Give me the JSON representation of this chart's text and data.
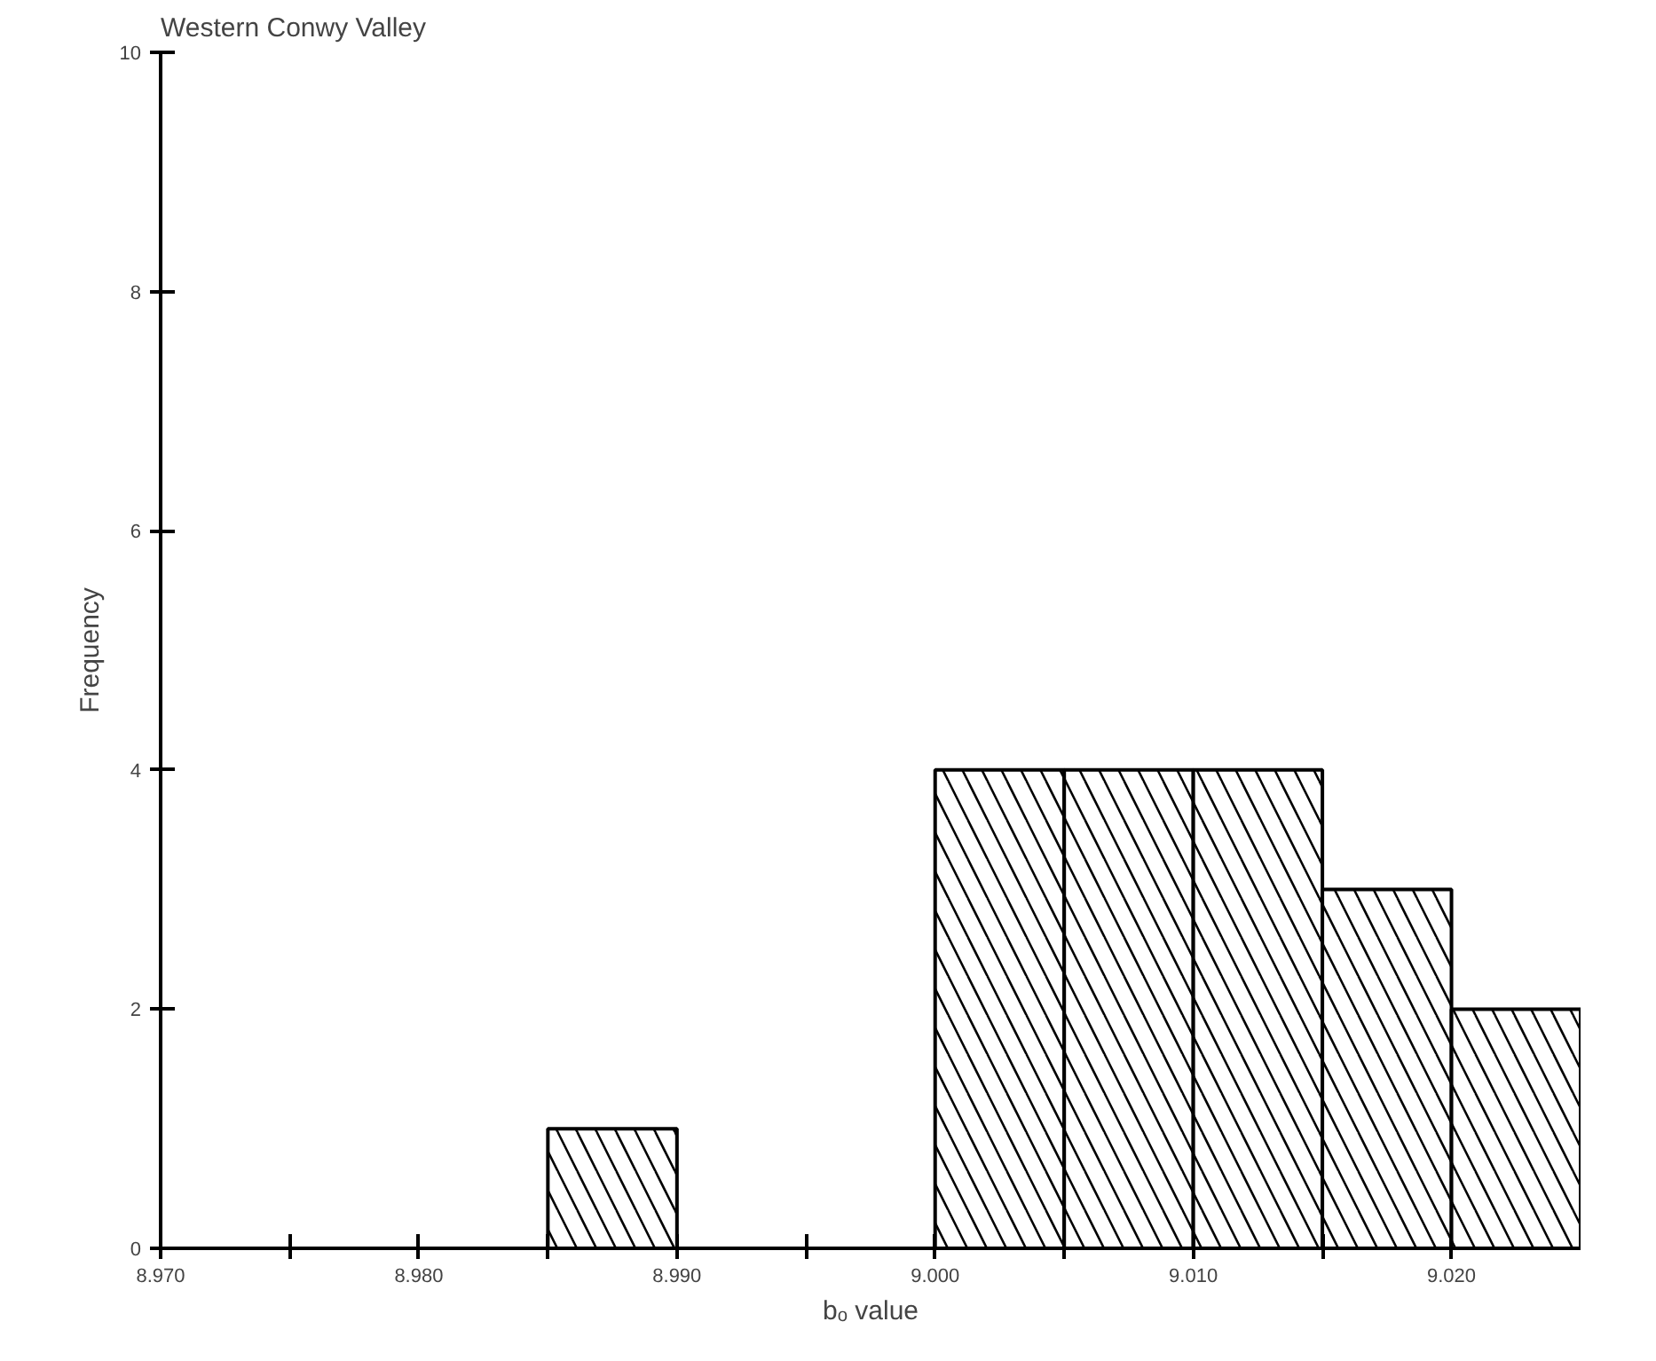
{
  "chart_data": {
    "type": "histogram",
    "title": "Western Conwy Valley",
    "xlabel": "bₒ value",
    "ylabel": "Frequency",
    "bins": [
      8.985,
      8.99,
      8.995,
      9.0,
      9.005,
      9.01,
      9.015,
      9.02,
      9.025
    ],
    "values": [
      1,
      0,
      0,
      4,
      4,
      4,
      3,
      2
    ],
    "color": "#000000",
    "xlim": [
      8.97,
      9.025
    ],
    "ylim": [
      0,
      10
    ],
    "xticks": [
      {
        "value": 8.97,
        "label": "8.970"
      },
      {
        "value": 8.975,
        "label": null
      },
      {
        "value": 8.98,
        "label": "8.980"
      },
      {
        "value": 8.985,
        "label": null
      },
      {
        "value": 8.99,
        "label": "8.990"
      },
      {
        "value": 8.995,
        "label": null
      },
      {
        "value": 9.0,
        "label": "9.000"
      },
      {
        "value": 9.005,
        "label": null
      },
      {
        "value": 9.01,
        "label": "9.010"
      },
      {
        "value": 9.015,
        "label": null
      },
      {
        "value": 9.02,
        "label": "9.020"
      }
    ],
    "yticks": [
      0,
      2,
      4,
      6,
      8,
      10
    ],
    "grid": false
  }
}
